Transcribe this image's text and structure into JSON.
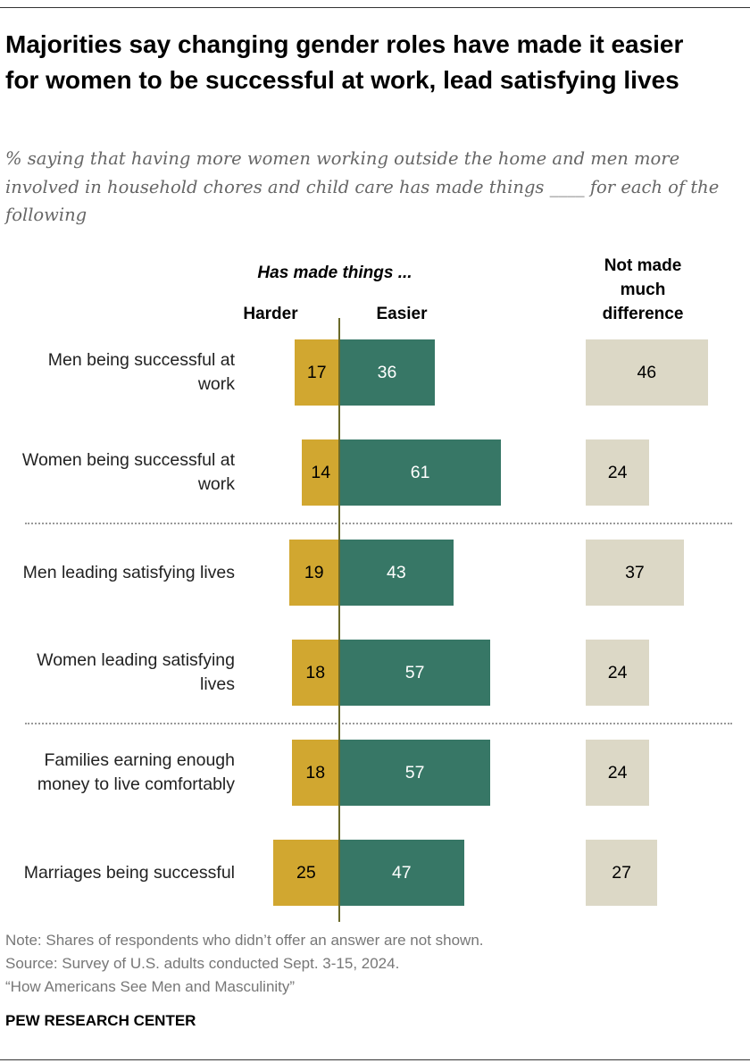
{
  "title": "Majorities say changing gender roles have made it easier for women to be successful at work, lead satisfying lives",
  "subtitle": "% saying that having more women working outside the home and men more involved in household chores and child care has made things ____ for each of the following",
  "chart_data": {
    "type": "bar",
    "orientation": "horizontal-diverging",
    "group_header": "Has made things ...",
    "categories": [
      "Men being successful at work",
      "Women being successful at work",
      "Men leading satisfying lives",
      "Women leading satisfying lives",
      "Families earning enough money to live comfortably",
      "Marriages being successful"
    ],
    "series": [
      {
        "name": "Harder",
        "color": "#d1a730",
        "values": [
          17,
          14,
          19,
          18,
          18,
          25
        ]
      },
      {
        "name": "Easier",
        "color": "#377766",
        "values": [
          36,
          61,
          43,
          57,
          57,
          47
        ]
      },
      {
        "name": "Not made much difference",
        "color": "#dcd8c6",
        "values": [
          46,
          24,
          37,
          24,
          24,
          27
        ]
      }
    ],
    "separators_after": [
      1,
      3
    ],
    "grid": false
  },
  "footer": {
    "note": "Note: Shares of respondents who didn’t offer an answer are not shown.",
    "source": "Source: Survey of U.S. adults conducted Sept. 3-15, 2024.",
    "report": "“How Americans See Men and Masculinity”",
    "logo": "PEW RESEARCH CENTER"
  }
}
